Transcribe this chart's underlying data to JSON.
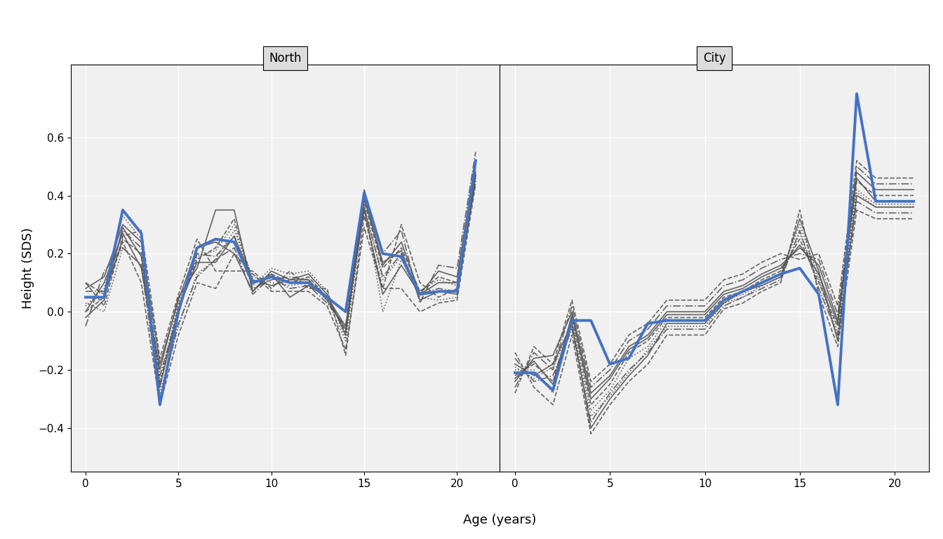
{
  "north_ages": [
    0,
    1,
    2,
    3,
    4,
    5,
    6,
    7,
    8,
    9,
    10,
    11,
    12,
    13,
    14,
    15,
    16,
    17,
    18,
    19,
    20,
    21
  ],
  "city_ages": [
    0,
    1,
    2,
    3,
    4,
    5,
    6,
    7,
    8,
    9,
    10,
    11,
    12,
    13,
    14,
    15,
    16,
    17,
    18,
    19,
    20,
    21
  ],
  "north_blue": [
    0.05,
    0.05,
    0.35,
    0.27,
    -0.32,
    0.0,
    0.22,
    0.25,
    0.24,
    0.1,
    0.12,
    0.1,
    0.1,
    0.05,
    0.0,
    0.41,
    0.2,
    0.19,
    0.06,
    0.07,
    0.07,
    0.52
  ],
  "city_blue": [
    -0.21,
    -0.21,
    -0.27,
    -0.03,
    -0.03,
    -0.18,
    -0.16,
    -0.04,
    -0.03,
    -0.03,
    -0.03,
    0.04,
    0.07,
    0.1,
    0.13,
    0.15,
    0.06,
    -0.32,
    0.75,
    0.38,
    0.38,
    0.38
  ],
  "north_augmented": [
    [
      0.0,
      0.1,
      0.27,
      0.15,
      -0.2,
      0.05,
      0.15,
      0.35,
      0.35,
      0.07,
      0.13,
      0.05,
      0.09,
      0.05,
      -0.05,
      0.35,
      0.06,
      0.16,
      0.06,
      0.1,
      0.1,
      0.48
    ],
    [
      0.0,
      0.05,
      0.25,
      0.2,
      -0.25,
      0.02,
      0.18,
      0.22,
      0.32,
      0.1,
      0.13,
      0.1,
      0.12,
      0.05,
      -0.07,
      0.38,
      0.15,
      0.22,
      0.07,
      0.12,
      0.1,
      0.5
    ],
    [
      0.07,
      0.07,
      0.28,
      0.22,
      -0.22,
      0.0,
      0.2,
      0.19,
      0.26,
      0.08,
      0.11,
      0.12,
      0.11,
      0.05,
      0.0,
      0.36,
      0.12,
      0.2,
      0.06,
      0.08,
      0.07,
      0.47
    ],
    [
      0.03,
      0.0,
      0.22,
      0.16,
      -0.28,
      -0.05,
      0.13,
      0.18,
      0.28,
      0.12,
      0.1,
      0.09,
      0.1,
      0.04,
      -0.1,
      0.37,
      0.0,
      0.18,
      0.05,
      0.04,
      0.05,
      0.46
    ],
    [
      0.08,
      0.12,
      0.3,
      0.24,
      -0.18,
      0.04,
      0.22,
      0.24,
      0.2,
      0.07,
      0.14,
      0.11,
      0.13,
      0.06,
      -0.08,
      0.4,
      0.16,
      0.24,
      0.06,
      0.14,
      0.12,
      0.52
    ],
    [
      0.1,
      0.02,
      0.26,
      0.28,
      -0.16,
      0.06,
      0.25,
      0.14,
      0.14,
      0.14,
      0.08,
      0.14,
      0.08,
      0.08,
      -0.15,
      0.33,
      0.08,
      0.3,
      0.1,
      0.05,
      0.08,
      0.45
    ],
    [
      -0.05,
      0.14,
      0.22,
      0.16,
      -0.3,
      -0.04,
      0.12,
      0.18,
      0.22,
      0.06,
      0.12,
      0.08,
      0.09,
      0.03,
      -0.05,
      0.42,
      0.2,
      0.28,
      0.03,
      0.16,
      0.15,
      0.55
    ],
    [
      0.02,
      0.08,
      0.33,
      0.25,
      -0.24,
      0.03,
      0.19,
      0.21,
      0.3,
      0.09,
      0.15,
      0.13,
      0.14,
      0.07,
      -0.09,
      0.36,
      0.11,
      0.19,
      0.07,
      0.11,
      0.09,
      0.49
    ],
    [
      -0.02,
      0.04,
      0.29,
      0.19,
      -0.26,
      0.01,
      0.17,
      0.17,
      0.26,
      0.11,
      0.09,
      0.11,
      0.11,
      0.04,
      -0.06,
      0.39,
      0.17,
      0.21,
      0.04,
      0.07,
      0.06,
      0.47
    ],
    [
      0.1,
      0.06,
      0.24,
      0.1,
      -0.32,
      -0.08,
      0.1,
      0.08,
      0.2,
      0.13,
      0.07,
      0.07,
      0.07,
      0.02,
      -0.13,
      0.29,
      0.08,
      0.08,
      0.0,
      0.03,
      0.04,
      0.44
    ]
  ],
  "city_augmented": [
    [
      -0.18,
      -0.22,
      -0.18,
      -0.04,
      -0.4,
      -0.3,
      -0.22,
      -0.15,
      -0.04,
      -0.04,
      -0.04,
      0.03,
      0.07,
      0.09,
      0.12,
      0.32,
      0.14,
      -0.1,
      0.4,
      0.36,
      0.36,
      0.36
    ],
    [
      -0.22,
      -0.18,
      -0.24,
      -0.02,
      -0.32,
      -0.25,
      -0.14,
      -0.1,
      -0.02,
      -0.02,
      -0.02,
      0.05,
      0.07,
      0.11,
      0.14,
      0.25,
      0.1,
      -0.05,
      0.45,
      0.4,
      0.4,
      0.4
    ],
    [
      -0.16,
      -0.24,
      -0.22,
      -0.06,
      -0.38,
      -0.28,
      -0.2,
      -0.14,
      -0.06,
      -0.06,
      -0.06,
      0.02,
      0.05,
      0.08,
      0.11,
      0.28,
      0.08,
      -0.08,
      0.38,
      0.34,
      0.34,
      0.34
    ],
    [
      -0.2,
      -0.2,
      -0.28,
      -0.04,
      -0.34,
      -0.27,
      -0.16,
      -0.12,
      -0.03,
      -0.03,
      -0.03,
      0.04,
      0.06,
      0.1,
      0.13,
      0.3,
      0.12,
      -0.07,
      0.42,
      0.37,
      0.37,
      0.37
    ],
    [
      -0.24,
      -0.16,
      -0.15,
      0.0,
      -0.28,
      -0.22,
      -0.12,
      -0.08,
      0.0,
      0.0,
      0.0,
      0.07,
      0.09,
      0.13,
      0.16,
      0.22,
      0.16,
      -0.03,
      0.48,
      0.42,
      0.42,
      0.42
    ],
    [
      -0.14,
      -0.26,
      -0.32,
      -0.08,
      -0.42,
      -0.32,
      -0.24,
      -0.18,
      -0.08,
      -0.08,
      -0.08,
      0.01,
      0.03,
      0.07,
      0.1,
      0.35,
      0.06,
      -0.12,
      0.35,
      0.32,
      0.32,
      0.32
    ],
    [
      -0.26,
      -0.14,
      -0.2,
      0.02,
      -0.26,
      -0.2,
      -0.1,
      -0.06,
      0.02,
      0.02,
      0.02,
      0.09,
      0.11,
      0.15,
      0.18,
      0.2,
      0.18,
      -0.01,
      0.5,
      0.44,
      0.44,
      0.44
    ],
    [
      -0.19,
      -0.23,
      -0.19,
      -0.05,
      -0.36,
      -0.29,
      -0.21,
      -0.13,
      -0.05,
      -0.05,
      -0.05,
      0.03,
      0.05,
      0.09,
      0.12,
      0.27,
      0.11,
      -0.09,
      0.41,
      0.36,
      0.36,
      0.36
    ],
    [
      -0.23,
      -0.17,
      -0.25,
      -0.01,
      -0.3,
      -0.23,
      -0.13,
      -0.09,
      -0.01,
      -0.01,
      -0.01,
      0.06,
      0.08,
      0.12,
      0.15,
      0.23,
      0.13,
      -0.04,
      0.46,
      0.38,
      0.38,
      0.38
    ],
    [
      -0.28,
      -0.12,
      -0.18,
      0.04,
      -0.24,
      -0.18,
      -0.08,
      -0.04,
      0.04,
      0.04,
      0.04,
      0.11,
      0.13,
      0.17,
      0.2,
      0.18,
      0.2,
      0.02,
      0.52,
      0.46,
      0.46,
      0.46
    ]
  ],
  "line_styles": [
    "solid",
    "dashed",
    "dashdot",
    "dotted",
    "solid",
    "dashed",
    "dashdot",
    "dotted",
    "solid",
    "dashed"
  ],
  "blue_color": "#4472C4",
  "gray_color": "#555555",
  "blue_lw": 2.8,
  "gray_lw": 1.2,
  "ylim": [
    -0.55,
    0.85
  ],
  "yticks": [
    -0.4,
    -0.2,
    0.0,
    0.2,
    0.4,
    0.6
  ],
  "bg_color": "#EBEBEB",
  "title_north": "North",
  "title_city": "City",
  "xlabel": "Age (years)",
  "ylabel": "Height (SDS)",
  "north_xlim": [
    -0.8,
    22.3
  ],
  "city_xlim": [
    -0.8,
    21.8
  ],
  "north_xticks": [
    0,
    5,
    10,
    15,
    20
  ],
  "city_xticks": [
    0,
    5,
    10,
    15,
    20
  ],
  "facet_bg": "#DCDCDC",
  "panel_bg": "#F0F0F0"
}
